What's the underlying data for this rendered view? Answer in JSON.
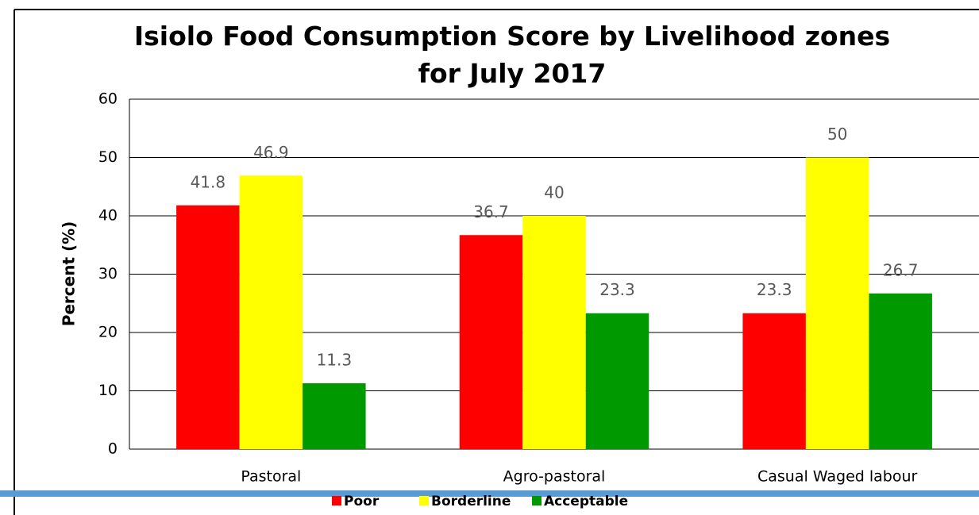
{
  "chart_data": {
    "type": "bar",
    "title": "Isiolo Food Consumption Score by Livelihood zones for July 2017",
    "y_label": "Percent (%)",
    "categories": [
      "Pastoral",
      "Agro-pastoral",
      "Casual Waged labour"
    ],
    "series": [
      {
        "name": "Poor",
        "color": "#ff0000",
        "values": [
          41.8,
          36.7,
          23.3
        ]
      },
      {
        "name": "Borderline",
        "color": "#ffff00",
        "values": [
          46.9,
          40,
          50
        ]
      },
      {
        "name": "Acceptable",
        "color": "#009900",
        "values": [
          11.3,
          23.3,
          26.7
        ]
      }
    ],
    "ylim": [
      0,
      60
    ],
    "yticks": [
      0,
      10,
      20,
      30,
      40,
      50,
      60
    ],
    "grid": true,
    "legend": "bottom"
  }
}
